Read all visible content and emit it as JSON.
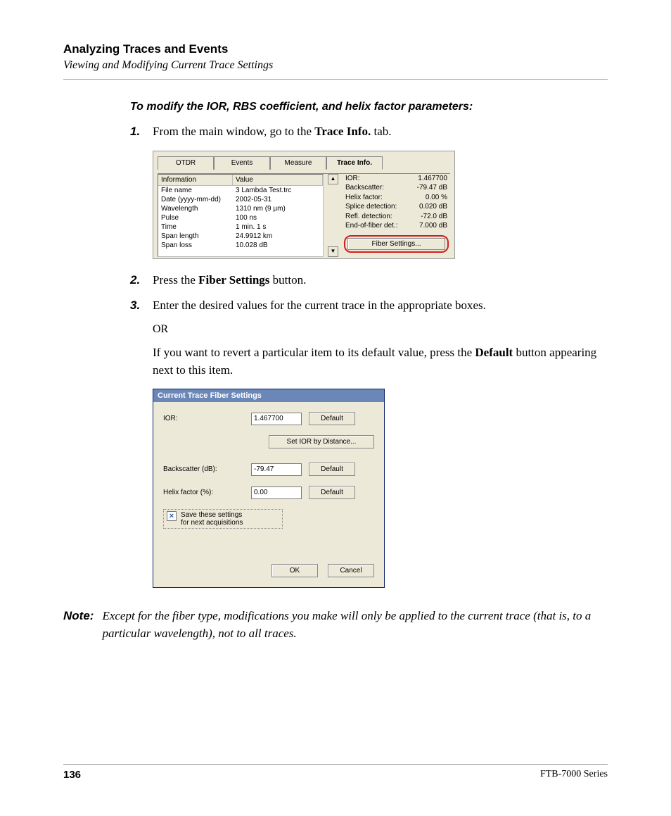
{
  "header": {
    "chapter": "Analyzing Traces and Events",
    "section": "Viewing and Modifying Current Trace Settings"
  },
  "procedure": {
    "title": "To modify the IOR, RBS coefficient, and helix factor parameters:",
    "steps": {
      "s1_pre": "From the main window, go to the ",
      "s1_bold": "Trace Info.",
      "s1_post": " tab.",
      "s2_pre": "Press the ",
      "s2_bold": "Fiber Settings",
      "s2_post": " button.",
      "s3": "Enter the desired values for the current trace in the appropriate boxes.",
      "or": "OR",
      "s3b_pre": "If you want to revert a particular item to its default value, press the ",
      "s3b_bold": "Default",
      "s3b_post": " button appearing next to this item."
    }
  },
  "shot1": {
    "tabs": {
      "otdr": "OTDR",
      "events": "Events",
      "measure": "Measure",
      "traceinfo": "Trace Info."
    },
    "table": {
      "header_info": "Information",
      "header_value": "Value",
      "rows": [
        {
          "k": "File name",
          "v": "3 Lambda Test.trc"
        },
        {
          "k": "Date (yyyy-mm-dd)",
          "v": "2002-05-31"
        },
        {
          "k": "Wavelength",
          "v": "1310 nm (9 µm)"
        },
        {
          "k": "Pulse",
          "v": "100 ns"
        },
        {
          "k": "Time",
          "v": "1 min. 1 s"
        },
        {
          "k": "Span length",
          "v": "24.9912 km"
        },
        {
          "k": "Span loss",
          "v": "10.028 dB"
        }
      ]
    },
    "right": [
      {
        "k": "IOR:",
        "v": "1.467700"
      },
      {
        "k": "Backscatter:",
        "v": "-79.47 dB"
      },
      {
        "k": "Helix factor:",
        "v": "0.00 %"
      },
      {
        "k": "Splice detection:",
        "v": "0.020 dB"
      },
      {
        "k": "Refl. detection:",
        "v": "-72.0 dB"
      },
      {
        "k": "End-of-fiber det.:",
        "v": "7.000 dB"
      }
    ],
    "fiber_settings_btn": "Fiber Settings...",
    "scroll_up": "▲",
    "scroll_down": "▼",
    "colors": {
      "panel_bg": "#ece9d8",
      "highlight": "#d21e1e"
    }
  },
  "shot2": {
    "title": "Current Trace Fiber Settings",
    "rows": {
      "ior_label": "IOR:",
      "ior_value": "1.467700",
      "backscatter_label": "Backscatter (dB):",
      "backscatter_value": "-79.47",
      "helix_label": "Helix factor (%):",
      "helix_value": "0.00"
    },
    "buttons": {
      "default": "Default",
      "set_ior": "Set IOR by Distance...",
      "ok": "OK",
      "cancel": "Cancel"
    },
    "checkbox": {
      "checked_glyph": "×",
      "label_l1": "Save these settings",
      "label_l2": "for next acquisitions"
    },
    "colors": {
      "titlebar_bg": "#6b87b8",
      "titlebar_fg": "#ffffff",
      "panel_bg": "#ece9d8",
      "border": "#0a246a"
    }
  },
  "note": {
    "label": "Note:",
    "body": "Except for the fiber type, modifications you make will only be applied to the current trace (that is, to a particular wavelength), not to all traces."
  },
  "footer": {
    "page": "136",
    "series": "FTB-7000 Series"
  }
}
